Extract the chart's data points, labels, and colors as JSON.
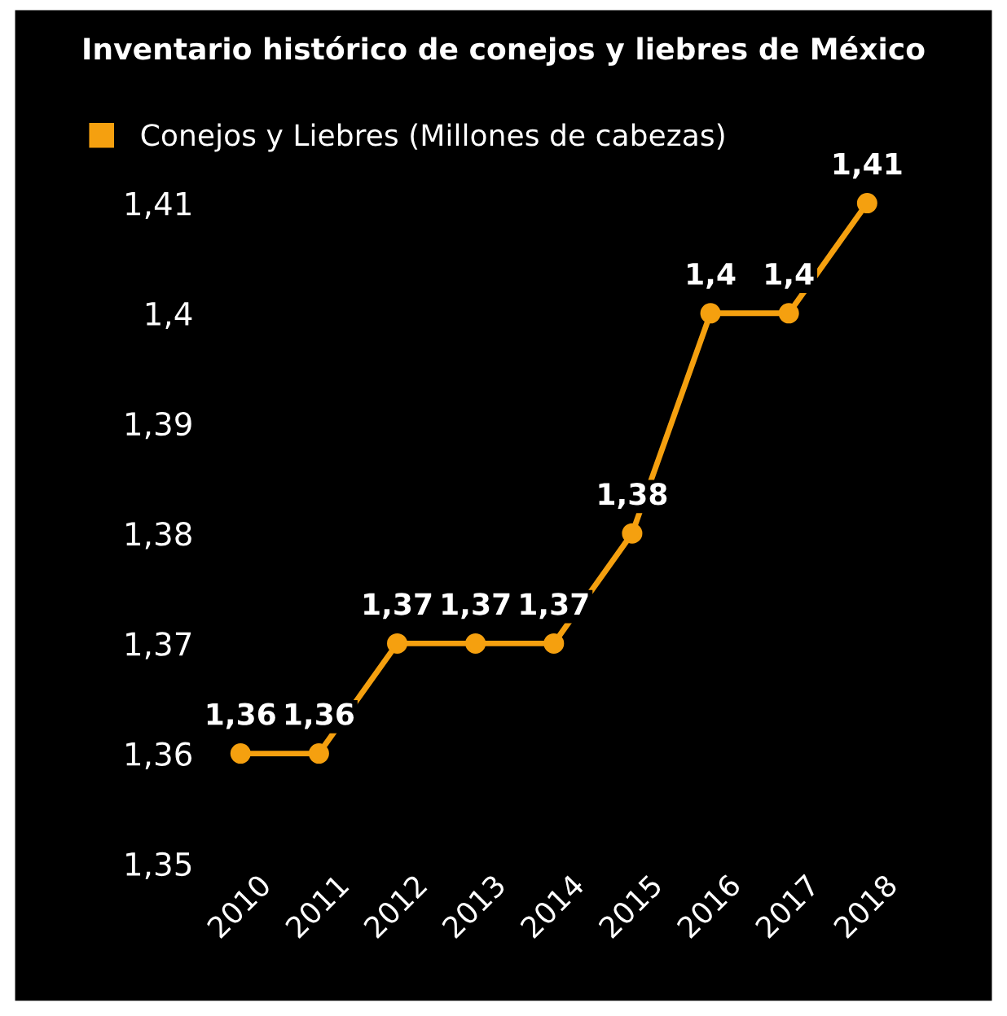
{
  "chart_data": {
    "type": "line",
    "title": "Inventario histórico de conejos y liebres de México",
    "categories": [
      "2010",
      "2011",
      "2012",
      "2013",
      "2014",
      "2015",
      "2016",
      "2017",
      "2018"
    ],
    "series": [
      {
        "name": "Conejos y Liebres (Millones de cabezas)",
        "color": "#f5a00f",
        "values": [
          1.36,
          1.36,
          1.37,
          1.37,
          1.37,
          1.38,
          1.4,
          1.4,
          1.41
        ],
        "value_labels": [
          "1,36",
          "1,36",
          "1,37",
          "1,37",
          "1,37",
          "1,38",
          "1,4",
          "1,4",
          "1,41"
        ]
      }
    ],
    "ylim": [
      1.35,
      1.41
    ],
    "yticks": [
      {
        "value": 1.35,
        "label": "1,35"
      },
      {
        "value": 1.36,
        "label": "1,36"
      },
      {
        "value": 1.37,
        "label": "1,37"
      },
      {
        "value": 1.38,
        "label": "1,38"
      },
      {
        "value": 1.39,
        "label": "1,39"
      },
      {
        "value": 1.4,
        "label": "1,4"
      },
      {
        "value": 1.41,
        "label": "1,41"
      }
    ],
    "grid": false,
    "legend": "top left",
    "marker": "circle",
    "line_style": "solid"
  }
}
